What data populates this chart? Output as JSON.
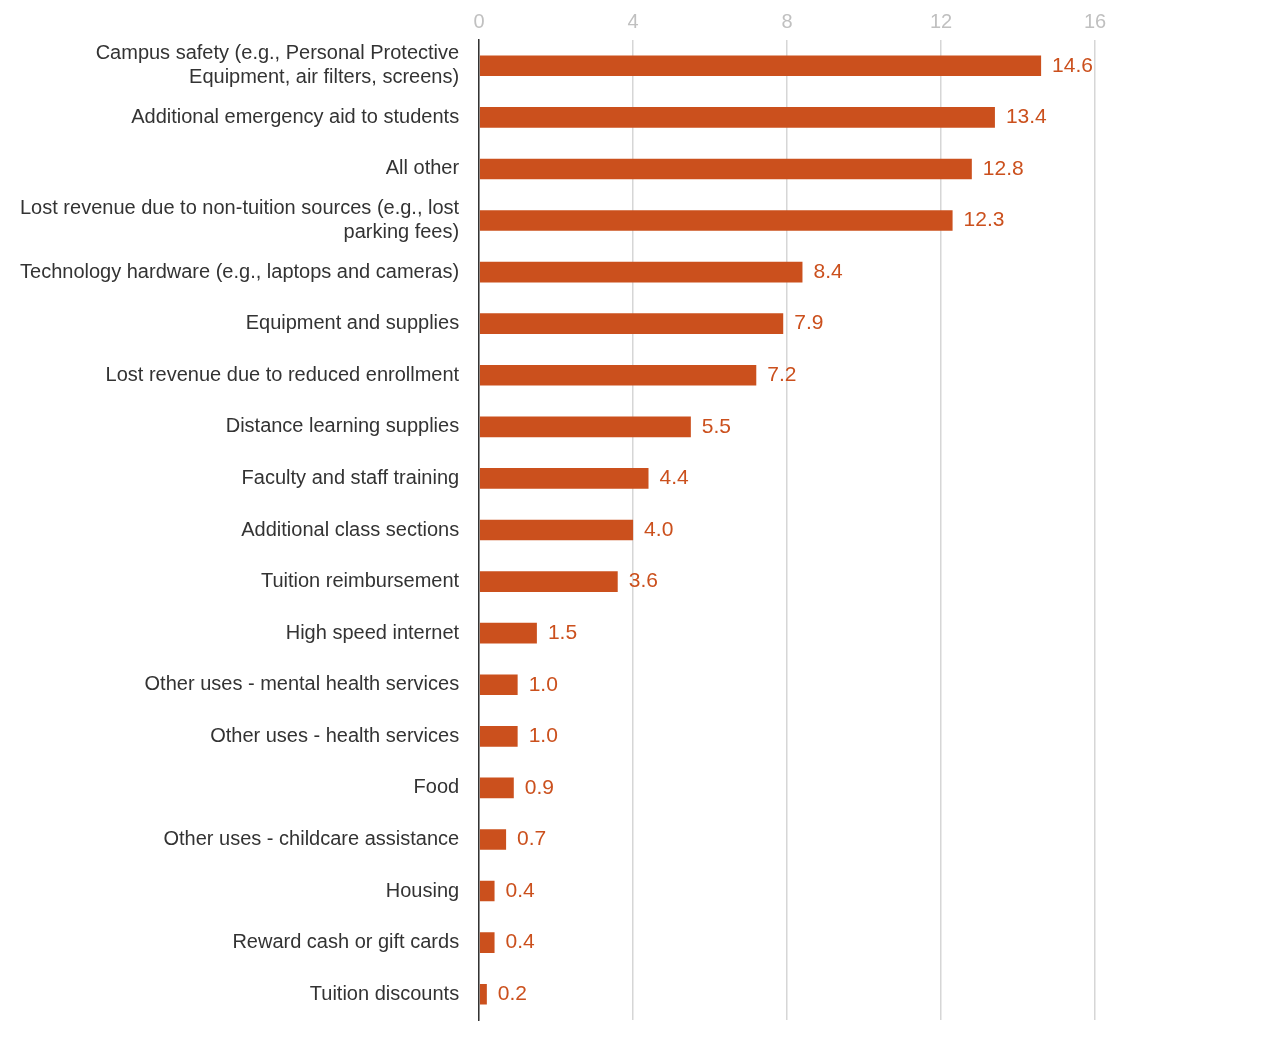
{
  "chart_data": {
    "type": "bar",
    "orientation": "horizontal",
    "categories": [
      "Campus safety (e.g., Personal Protective Equipment, air filters, screens)",
      "Additional emergency aid to students",
      "All other",
      "Lost revenue due to non-tuition sources (e.g., lost parking fees)",
      "Technology hardware (e.g., laptops and cameras)",
      "Equipment and supplies",
      "Lost revenue due to reduced enrollment",
      "Distance learning supplies",
      "Faculty and staff training",
      "Additional class sections",
      "Tuition reimbursement",
      "High speed internet",
      "Other uses - mental health services",
      "Other uses - health services",
      "Food",
      "Other uses - childcare assistance",
      "Housing",
      "Reward cash or gift cards",
      "Tuition discounts"
    ],
    "values": [
      14.6,
      13.4,
      12.8,
      12.3,
      8.4,
      7.9,
      7.2,
      5.5,
      4.4,
      4.0,
      3.6,
      1.5,
      1.0,
      1.0,
      0.9,
      0.7,
      0.4,
      0.4,
      0.2
    ],
    "color": "#cb501d",
    "xlim": [
      0,
      16
    ],
    "xticks": [
      0,
      4,
      8,
      12,
      16
    ],
    "grid": "x",
    "value_labels": [
      "14.6",
      "13.4",
      "12.8",
      "12.3",
      "8.4",
      "7.9",
      "7.2",
      "5.5",
      "4.4",
      "4.0",
      "3.6",
      "1.5",
      "1.0",
      "1.0",
      "0.9",
      "0.7",
      "0.4",
      "0.4",
      "0.2"
    ]
  }
}
